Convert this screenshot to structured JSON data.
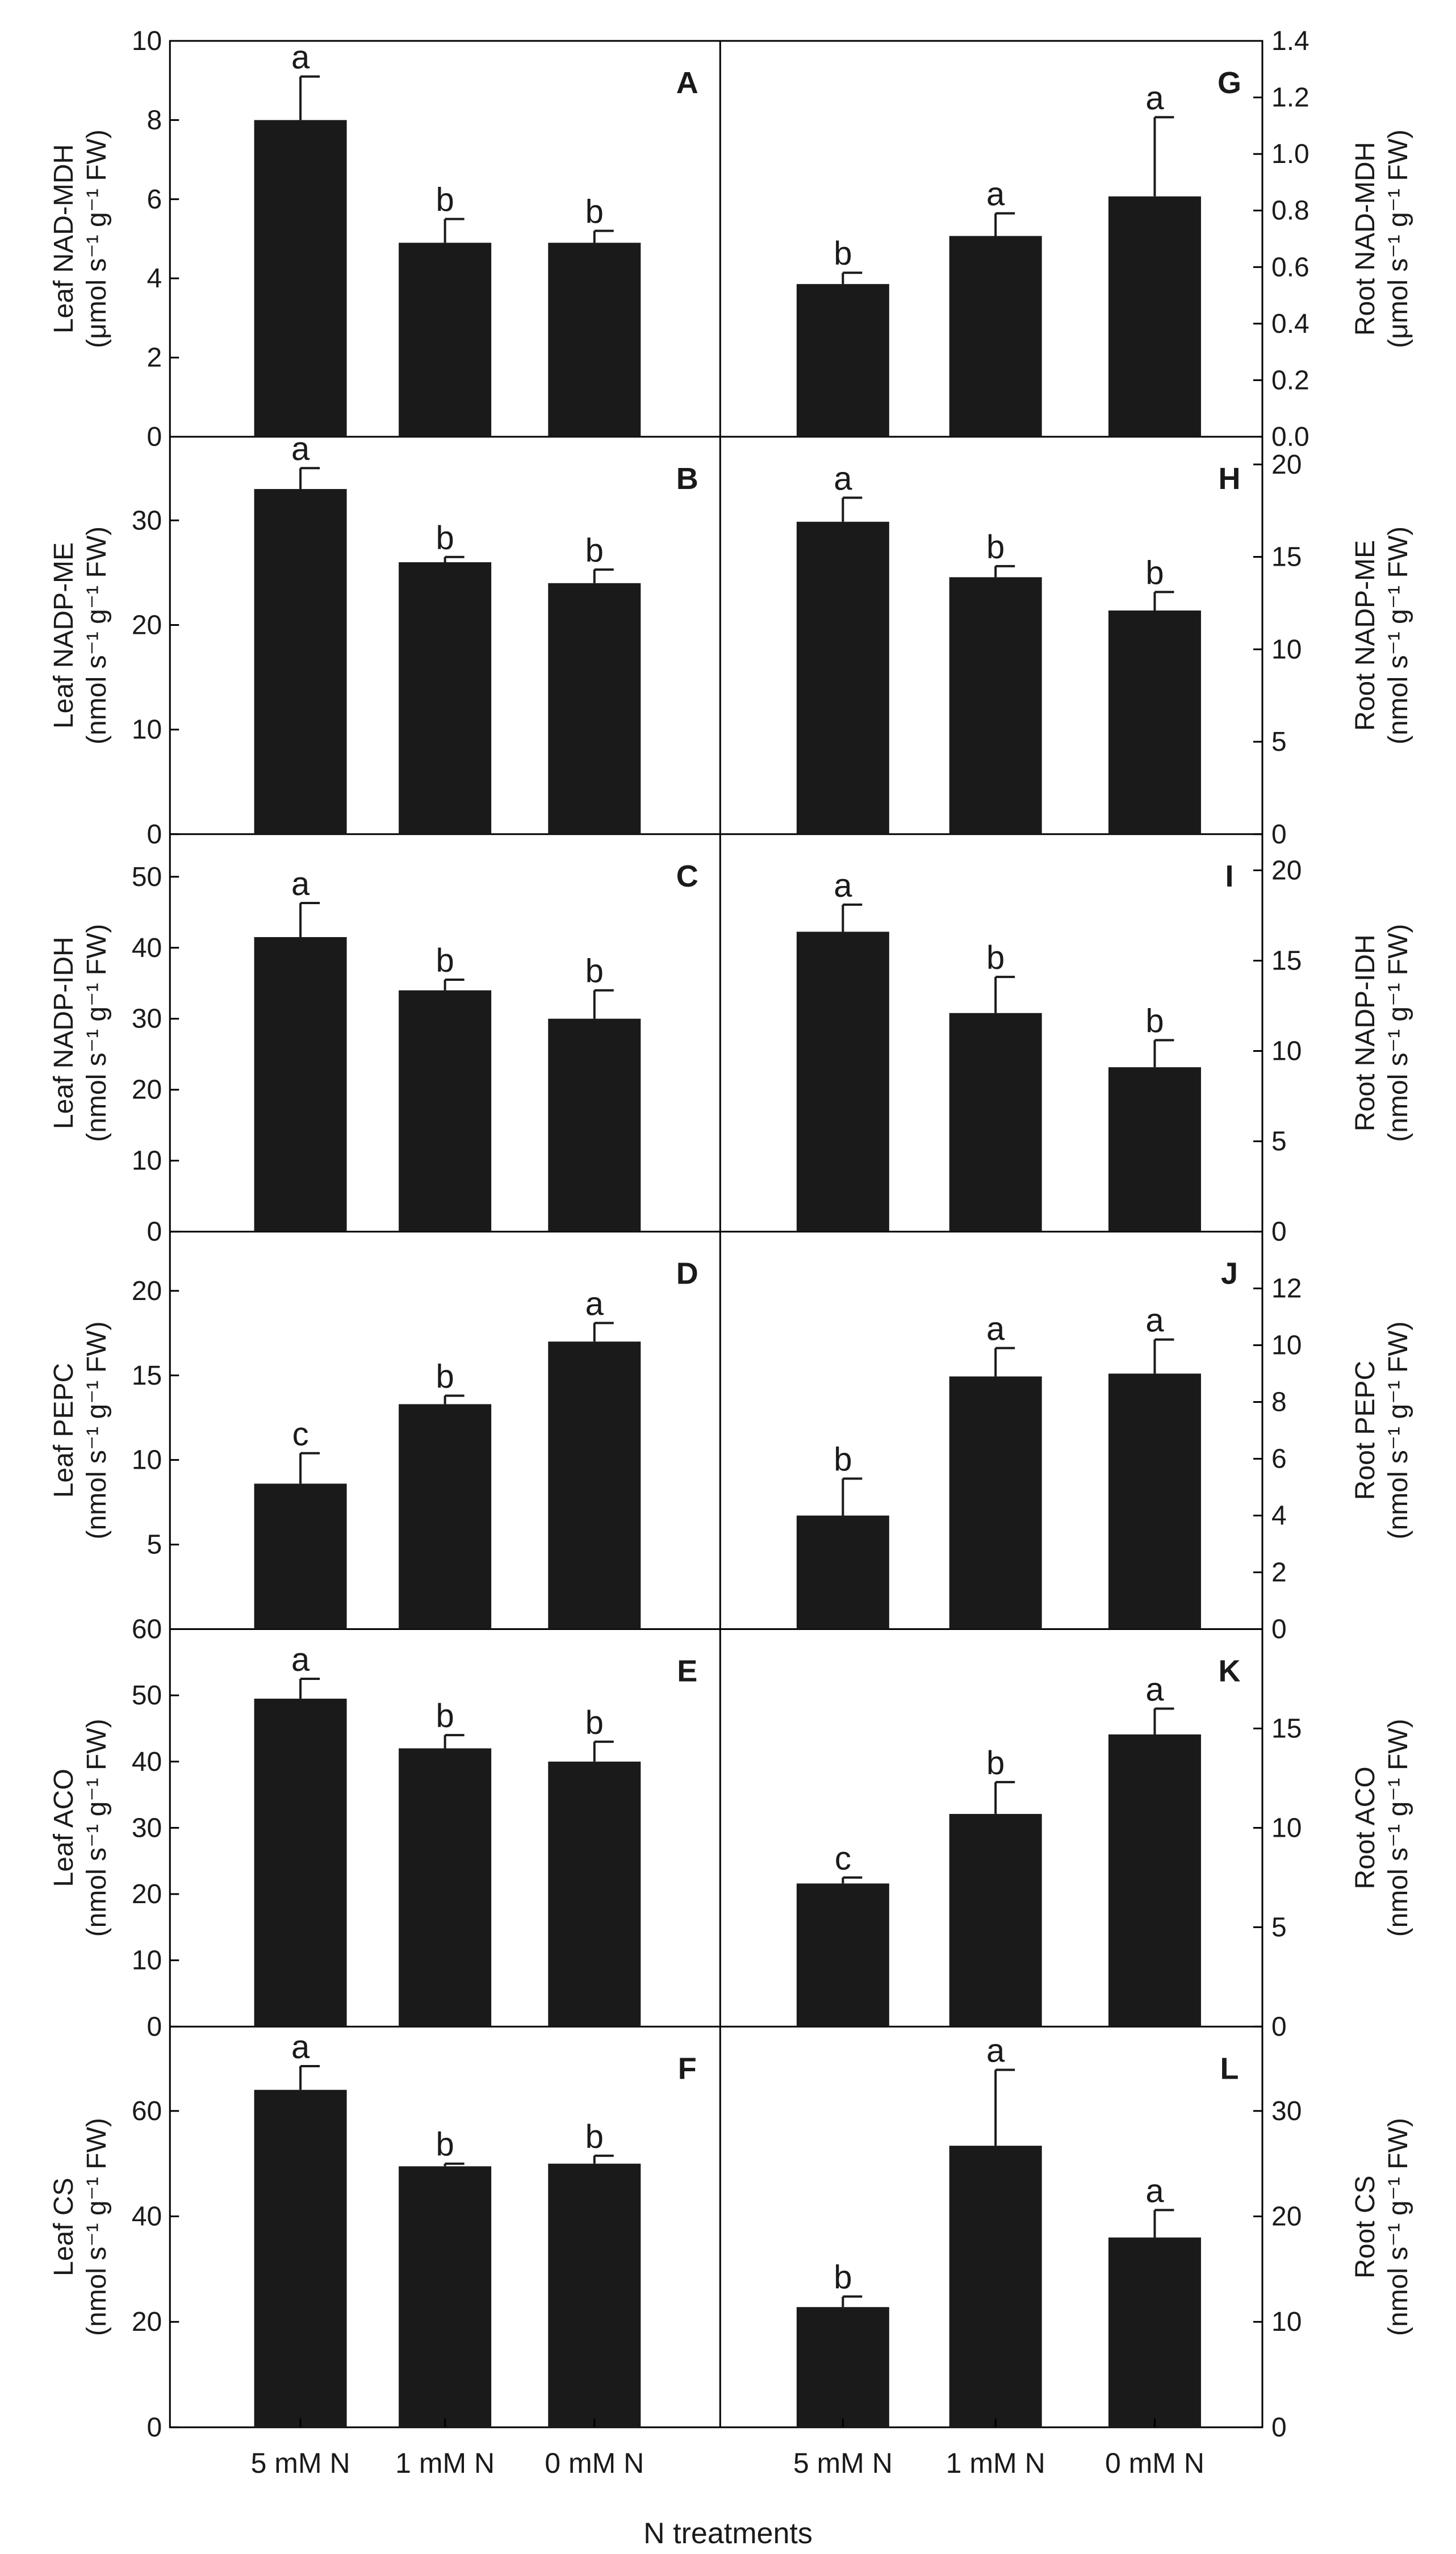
{
  "figure": {
    "xlabel": "N treatments",
    "categories": [
      "5 mM N",
      "1 mM N",
      "0 mM N"
    ]
  },
  "chart_data": [
    {
      "type": "bar",
      "panel": "A",
      "side": "left",
      "ylabel_line1": "Leaf NAD-MDH",
      "ylabel_line2": "(μmol s⁻¹ g⁻¹ FW)",
      "categories": [
        "5 mM N",
        "1 mM N",
        "0 mM N"
      ],
      "values": [
        8.0,
        4.9,
        4.9
      ],
      "errors": [
        1.1,
        0.6,
        0.3
      ],
      "letters": [
        "a",
        "b",
        "b"
      ],
      "ylim": [
        0,
        10
      ],
      "ticks": [
        0,
        2,
        4,
        6,
        8,
        10
      ],
      "tick_labels": [
        "0",
        "2",
        "4",
        "6",
        "8",
        "10"
      ]
    },
    {
      "type": "bar",
      "panel": "B",
      "side": "left",
      "ylabel_line1": "Leaf NADP-ME",
      "ylabel_line2": "(nmol s⁻¹ g⁻¹ FW)",
      "categories": [
        "5 mM N",
        "1 mM N",
        "0 mM N"
      ],
      "values": [
        33,
        26,
        24
      ],
      "errors": [
        2,
        0.5,
        1.3
      ],
      "letters": [
        "a",
        "b",
        "b"
      ],
      "ylim": [
        0,
        38
      ],
      "ticks": [
        0,
        10,
        20,
        30
      ],
      "tick_labels": [
        "0",
        "10",
        "20",
        "30"
      ]
    },
    {
      "type": "bar",
      "panel": "C",
      "side": "left",
      "ylabel_line1": "Leaf NADP-IDH",
      "ylabel_line2": "(nmol s⁻¹ g⁻¹ FW)",
      "categories": [
        "5 mM N",
        "1 mM N",
        "0 mM N"
      ],
      "values": [
        41.5,
        34,
        30
      ],
      "errors": [
        4.8,
        1.5,
        4
      ],
      "letters": [
        "a",
        "b",
        "b"
      ],
      "ylim": [
        0,
        56
      ],
      "ticks": [
        0,
        10,
        20,
        30,
        40,
        50
      ],
      "tick_labels": [
        "0",
        "10",
        "20",
        "30",
        "40",
        "50"
      ]
    },
    {
      "type": "bar",
      "panel": "D",
      "side": "left",
      "ylabel_line1": "Leaf PEPC",
      "ylabel_line2": "(nmol s⁻¹ g⁻¹ FW)",
      "categories": [
        "5 mM N",
        "1 mM N",
        "0 mM N"
      ],
      "values": [
        8.6,
        13.3,
        17.0
      ],
      "errors": [
        1.8,
        0.5,
        1.1
      ],
      "letters": [
        "c",
        "b",
        "a"
      ],
      "ylim": [
        0,
        23.5
      ],
      "ticks": [
        5,
        10,
        15,
        20
      ],
      "tick_labels": [
        "5",
        "10",
        "15",
        "20"
      ]
    },
    {
      "type": "bar",
      "panel": "E",
      "side": "left",
      "ylabel_line1": "Leaf ACO",
      "ylabel_line2": "(nmol s⁻¹ g⁻¹ FW)",
      "categories": [
        "5 mM N",
        "1 mM N",
        "0 mM N"
      ],
      "values": [
        49.5,
        42,
        40
      ],
      "errors": [
        3,
        2,
        3
      ],
      "letters": [
        "a",
        "b",
        "b"
      ],
      "ylim": [
        0,
        60
      ],
      "ticks": [
        0,
        10,
        20,
        30,
        40,
        50,
        60
      ],
      "tick_labels": [
        "0",
        "10",
        "20",
        "30",
        "40",
        "50",
        "60"
      ]
    },
    {
      "type": "bar",
      "panel": "F",
      "side": "left",
      "ylabel_line1": "Leaf CS",
      "ylabel_line2": "(nmol s⁻¹ g⁻¹ FW)",
      "categories": [
        "5 mM N",
        "1 mM N",
        "0 mM N"
      ],
      "values": [
        64,
        49.5,
        50
      ],
      "errors": [
        4.5,
        0.5,
        1.5
      ],
      "letters": [
        "a",
        "b",
        "b"
      ],
      "ylim": [
        0,
        76
      ],
      "ticks": [
        0,
        20,
        40,
        60
      ],
      "tick_labels": [
        "0",
        "20",
        "40",
        "60"
      ]
    },
    {
      "type": "bar",
      "panel": "G",
      "side": "right",
      "ylabel_line1": "Root NAD-MDH",
      "ylabel_line2": "(μmol s⁻¹ g⁻¹ FW)",
      "categories": [
        "5 mM N",
        "1 mM N",
        "0 mM N"
      ],
      "values": [
        0.54,
        0.71,
        0.85
      ],
      "errors": [
        0.04,
        0.08,
        0.28
      ],
      "letters": [
        "b",
        "a",
        "a"
      ],
      "ylim": [
        0,
        1.4
      ],
      "ticks": [
        0,
        0.2,
        0.4,
        0.6,
        0.8,
        1.0,
        1.2,
        1.4
      ],
      "tick_labels": [
        "0.0",
        "0.2",
        "0.4",
        "0.6",
        "0.8",
        "1.0",
        "1.2",
        "1.4"
      ]
    },
    {
      "type": "bar",
      "panel": "H",
      "side": "right",
      "ylabel_line1": "Root NADP-ME",
      "ylabel_line2": "(nmol s⁻¹ g⁻¹ FW)",
      "categories": [
        "5 mM N",
        "1 mM N",
        "0 mM N"
      ],
      "values": [
        16.9,
        13.9,
        12.1
      ],
      "errors": [
        1.3,
        0.6,
        1.0
      ],
      "letters": [
        "a",
        "b",
        "b"
      ],
      "ylim": [
        0,
        21.5
      ],
      "ticks": [
        0,
        5,
        10,
        15,
        20
      ],
      "tick_labels": [
        "0",
        "5",
        "10",
        "15",
        "20"
      ]
    },
    {
      "type": "bar",
      "panel": "I",
      "side": "right",
      "ylabel_line1": "Root NADP-IDH",
      "ylabel_line2": "(nmol s⁻¹ g⁻¹ FW)",
      "categories": [
        "5 mM N",
        "1 mM N",
        "0 mM N"
      ],
      "values": [
        16.6,
        12.1,
        9.1
      ],
      "errors": [
        1.5,
        2.0,
        1.5
      ],
      "letters": [
        "a",
        "b",
        "b"
      ],
      "ylim": [
        0,
        22
      ],
      "ticks": [
        0,
        5,
        10,
        15,
        20
      ],
      "tick_labels": [
        "0",
        "5",
        "10",
        "15",
        "20"
      ]
    },
    {
      "type": "bar",
      "panel": "J",
      "side": "right",
      "ylabel_line1": "Root PEPC",
      "ylabel_line2": "(nmol s⁻¹ g⁻¹ FW)",
      "categories": [
        "5 mM N",
        "1 mM N",
        "0 mM N"
      ],
      "values": [
        4.0,
        8.9,
        9.0
      ],
      "errors": [
        1.3,
        1.0,
        1.2
      ],
      "letters": [
        "b",
        "a",
        "a"
      ],
      "ylim": [
        0,
        14
      ],
      "ticks": [
        0,
        2,
        4,
        6,
        8,
        10,
        12
      ],
      "tick_labels": [
        "0",
        "2",
        "4",
        "6",
        "8",
        "10",
        "12"
      ]
    },
    {
      "type": "bar",
      "panel": "K",
      "side": "right",
      "ylabel_line1": "Root ACO",
      "ylabel_line2": "(nmol s⁻¹ g⁻¹ FW)",
      "categories": [
        "5 mM N",
        "1 mM N",
        "0 mM N"
      ],
      "values": [
        7.2,
        10.7,
        14.7
      ],
      "errors": [
        0.3,
        1.6,
        1.3
      ],
      "letters": [
        "c",
        "b",
        "a"
      ],
      "ylim": [
        0,
        20
      ],
      "ticks": [
        0,
        5,
        10,
        15
      ],
      "tick_labels": [
        "0",
        "5",
        "10",
        "15"
      ]
    },
    {
      "type": "bar",
      "panel": "L",
      "side": "right",
      "ylabel_line1": "Root CS",
      "ylabel_line2": "(nmol s⁻¹ g⁻¹ FW)",
      "categories": [
        "5 mM N",
        "1 mM N",
        "0 mM N"
      ],
      "values": [
        11.4,
        26.7,
        18.0
      ],
      "errors": [
        1.0,
        7.2,
        2.6
      ],
      "letters": [
        "b",
        "a",
        "a"
      ],
      "ylim": [
        0,
        38
      ],
      "ticks": [
        0,
        10,
        20,
        30
      ],
      "tick_labels": [
        "0",
        "10",
        "20",
        "30"
      ]
    }
  ]
}
